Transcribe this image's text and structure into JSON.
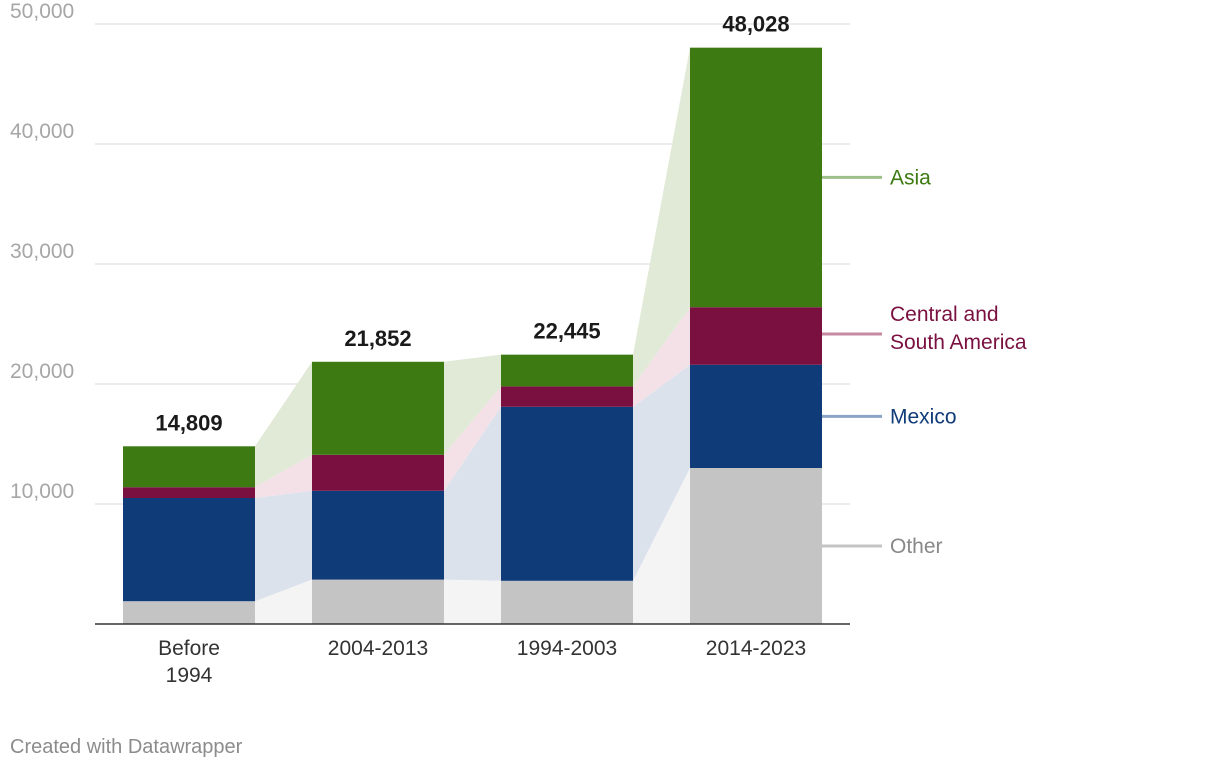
{
  "chart_data": {
    "type": "stacked-bar",
    "title": "",
    "xlabel": "",
    "ylabel": "",
    "ylim": [
      0,
      50000
    ],
    "yticks": [
      {
        "value": 10000,
        "label": "10,000"
      },
      {
        "value": 20000,
        "label": "20,000"
      },
      {
        "value": 30000,
        "label": "30,000"
      },
      {
        "value": 40000,
        "label": "40,000"
      },
      {
        "value": 50000,
        "label": "50,000"
      }
    ],
    "categories": [
      {
        "label_lines": [
          "Before",
          "1994"
        ]
      },
      {
        "label_lines": [
          "2004-2013"
        ]
      },
      {
        "label_lines": [
          "1994-2003"
        ]
      },
      {
        "label_lines": [
          "2014-2023"
        ]
      }
    ],
    "totals": [
      "14,809",
      "21,852",
      "22,445",
      "48,028"
    ],
    "series": [
      {
        "name": "Other",
        "legend_lines": [
          "Other"
        ],
        "color": "#c4c4c4",
        "band_color": "#f4f4f4",
        "legend_text_color": "#888888",
        "legend_line_color": "#c4c4c4",
        "values": [
          1900,
          3700,
          3600,
          13000
        ]
      },
      {
        "name": "Mexico",
        "legend_lines": [
          "Mexico"
        ],
        "color": "#0f3b79",
        "band_color": "#dce2ec",
        "legend_text_color": "#0f3b79",
        "legend_line_color": "#8aa3c6",
        "values": [
          8600,
          7400,
          14500,
          8600
        ]
      },
      {
        "name": "Central and South America",
        "legend_lines": [
          "Central and",
          "South America"
        ],
        "color": "#7a1040",
        "band_color": "#f4e1e8",
        "legend_text_color": "#7a1040",
        "legend_line_color": "#c48aa0",
        "values": [
          900,
          3000,
          1700,
          4800
        ]
      },
      {
        "name": "Asia",
        "legend_lines": [
          "Asia"
        ],
        "color": "#3d7a12",
        "band_color": "#e1ead7",
        "legend_text_color": "#3d7a12",
        "legend_line_color": "#9fbf8a",
        "values": [
          3409,
          7752,
          2645,
          21628
        ]
      }
    ],
    "grid": true,
    "legend_position": "right (direct labels)"
  },
  "footer": {
    "credit": "Created with Datawrapper"
  }
}
